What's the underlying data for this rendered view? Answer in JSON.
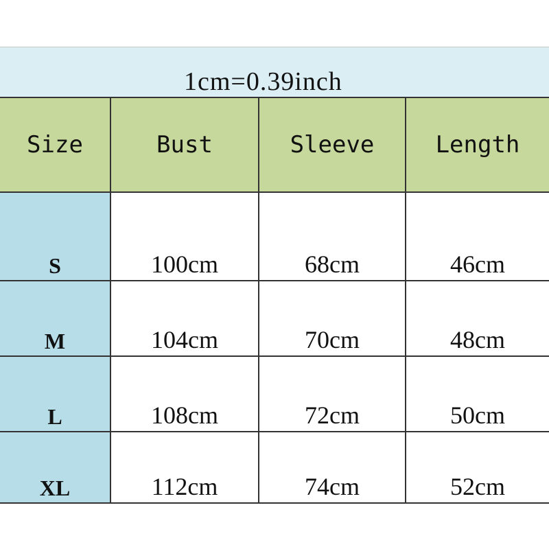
{
  "note": "1cm=0.39inch",
  "columns": [
    "Size",
    "Bust",
    "Sleeve",
    "Length"
  ],
  "rows": [
    [
      "S",
      "100cm",
      "68cm",
      "46cm"
    ],
    [
      "M",
      "104cm",
      "70cm",
      "48cm"
    ],
    [
      "L",
      "108cm",
      "72cm",
      "50cm"
    ],
    [
      "XL",
      "112cm",
      "74cm",
      "52cm"
    ]
  ],
  "colors": {
    "header_bg": "#c6d89b",
    "size_col_bg": "#b7dde8",
    "title_bg": "#dbeef4"
  }
}
